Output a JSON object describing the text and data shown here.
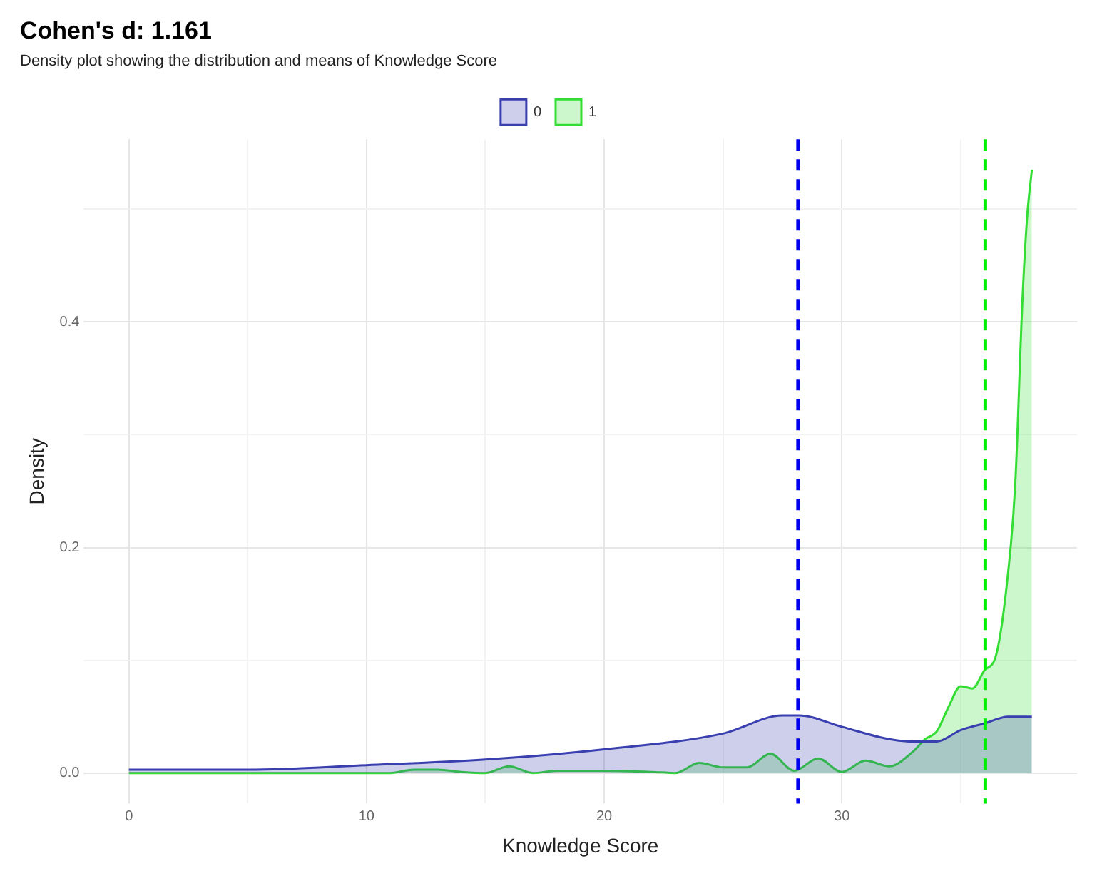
{
  "chart_data": {
    "type": "area",
    "title": "Cohen's d: 1.161",
    "subtitle": "Density plot showing the distribution and means of Knowledge Score",
    "xlabel": "Knowledge Score",
    "ylabel": "Density",
    "xlim": [
      -1.9,
      39.9
    ],
    "ylim": [
      -0.027,
      0.562
    ],
    "xticks": [
      0,
      {
        "value": 5,
        "label": null
      },
      10,
      {
        "value": 15,
        "label": null
      },
      20,
      {
        "value": 25,
        "label": null
      },
      30,
      {
        "value": 35,
        "label": null
      }
    ],
    "yticks": [
      {
        "value": 0,
        "label": "0.0"
      },
      {
        "value": 0.1,
        "label": null
      },
      {
        "value": 0.2,
        "label": "0.2"
      },
      {
        "value": 0.3,
        "label": null
      },
      {
        "value": 0.4,
        "label": "0.4"
      },
      {
        "value": 0.5,
        "label": null
      }
    ],
    "grid": true,
    "legend": "top",
    "marker": "none",
    "series": [
      {
        "name": "0",
        "color": "#3a3fb0",
        "x": [
          0,
          5,
          10,
          15,
          20,
          25,
          27.5,
          28.2,
          30,
          32,
          33,
          34,
          35,
          36,
          37,
          38
        ],
        "values": [
          0.003,
          0.003,
          0.007,
          0.012,
          0.021,
          0.035,
          0.051,
          0.051,
          0.041,
          0.03,
          0.028,
          0.028,
          0.038,
          0.044,
          0.05,
          0.05
        ]
      },
      {
        "name": "1",
        "color": "#33dd33",
        "x": [
          0,
          11,
          12,
          13,
          14,
          15,
          16,
          17,
          18,
          19,
          20,
          22,
          23,
          24,
          25,
          26,
          27,
          28,
          29,
          30,
          31,
          32,
          33,
          33.5,
          34,
          34.5,
          35,
          35.5,
          36,
          36.5,
          37,
          37.3,
          37.6,
          37.8,
          38
        ],
        "values": [
          0,
          0,
          0.003,
          0.003,
          0.001,
          0,
          0.006,
          0,
          0.002,
          0.002,
          0.002,
          0.001,
          0,
          0.009,
          0.005,
          0.005,
          0.017,
          0.002,
          0.013,
          0.001,
          0.011,
          0.006,
          0.019,
          0.03,
          0.037,
          0.059,
          0.077,
          0.075,
          0.091,
          0.105,
          0.178,
          0.256,
          0.418,
          0.493,
          0.535
        ]
      }
    ],
    "ref_lines": [
      {
        "axis": "x",
        "value": 28.16,
        "color": "#0000ee",
        "line_style": "dashed"
      },
      {
        "axis": "x",
        "value": 36.04,
        "color": "#00ee00",
        "line_style": "dashed"
      }
    ]
  }
}
